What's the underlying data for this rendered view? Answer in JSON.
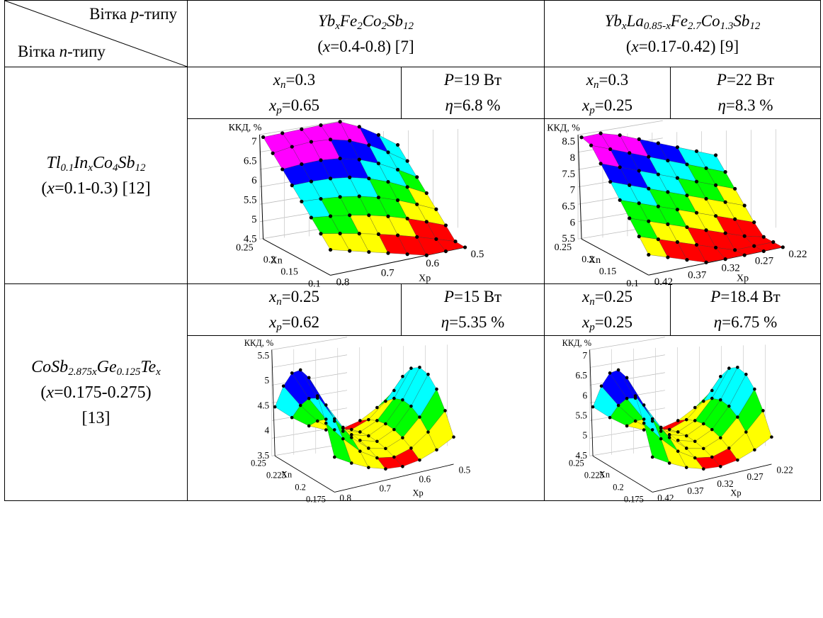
{
  "caption": "",
  "header": {
    "ptype": "Вітка p-типу",
    "ntype": "Вітка n-типу",
    "col1": {
      "formula": "YbxFe2Co2Sb12",
      "range": "(x=0.4-0.8) [7]"
    },
    "col2": {
      "formula": "YbxLa0.85-xFe2.7Co1.3Sb12",
      "range": "(x=0.17-0.42) [9]"
    }
  },
  "rows": [
    {
      "label_formula": "Tl0.1InxCo4Sb12",
      "label_range": "(x=0.1-0.3) [12]",
      "cells": [
        {
          "xn": "xn=0.3",
          "xp": "xp=0.65",
          "P": "P=19 Вт",
          "eta": "η=6.8 %"
        },
        {
          "xn": "xn=0.3",
          "xp": "xp=0.25",
          "P": "P=22 Вт",
          "eta": "η=8.3 %"
        }
      ]
    },
    {
      "label_formula": "CoSb2.875xGe0.125Tex",
      "label_range": "(x=0.175-0.275)",
      "label_ref": "[13]",
      "cells": [
        {
          "xn": "xn=0.25",
          "xp": "xp=0.62",
          "P": "P=15 Вт",
          "eta": "η=5.35 %"
        },
        {
          "xn": "xn=0.25",
          "xp": "xp=0.25",
          "P": "P=18.4 Вт",
          "eta": "η=6.75 %"
        }
      ]
    }
  ],
  "plots": [
    {
      "zlabel": "ККД, %",
      "zticks": [
        "7",
        "6.5",
        "6",
        "5.5",
        "5",
        "4.5"
      ],
      "xn_label": "Xn",
      "xn_ticks": [
        "0.25",
        "0.2",
        "0.15",
        "0.1"
      ],
      "xp_label": "Xp",
      "xp_ticks": [
        "0.8",
        "0.7",
        "0.6",
        "0.5"
      ],
      "shape": "ridge"
    },
    {
      "zlabel": "ККД, %",
      "zticks": [
        "8.5",
        "8",
        "7.5",
        "7",
        "6.5",
        "6",
        "5.5"
      ],
      "xn_label": "Xn",
      "xn_ticks": [
        "0.25",
        "0.2",
        "0.15",
        "0.1"
      ],
      "xp_label": "Xp",
      "xp_ticks": [
        "0.42",
        "0.37",
        "0.32",
        "0.27",
        "0.22"
      ],
      "shape": "plane"
    },
    {
      "zlabel": "ККД, %",
      "zticks": [
        "5.5",
        "5",
        "4.5",
        "4",
        "3.5"
      ],
      "xn_label": "Xn",
      "xn_ticks": [
        "0.25",
        "0.225",
        "0.2",
        "0.175"
      ],
      "xp_label": "Xp",
      "xp_ticks": [
        "0.8",
        "0.7",
        "0.6",
        "0.5"
      ],
      "shape": "saddle"
    },
    {
      "zlabel": "ККД, %",
      "zticks": [
        "7",
        "6.5",
        "6",
        "5.5",
        "5",
        "4.5"
      ],
      "xn_label": "Xn",
      "xn_ticks": [
        "0.25",
        "0.225",
        "0.2",
        "0.175"
      ],
      "xp_label": "Xp",
      "xp_ticks": [
        "0.42",
        "0.37",
        "0.32",
        "0.27",
        "0.22"
      ],
      "shape": "saddle"
    }
  ],
  "band_colors": [
    "#ff0000",
    "#ffff00",
    "#00ff00",
    "#00ffff",
    "#0000ff",
    "#ff00ff"
  ]
}
